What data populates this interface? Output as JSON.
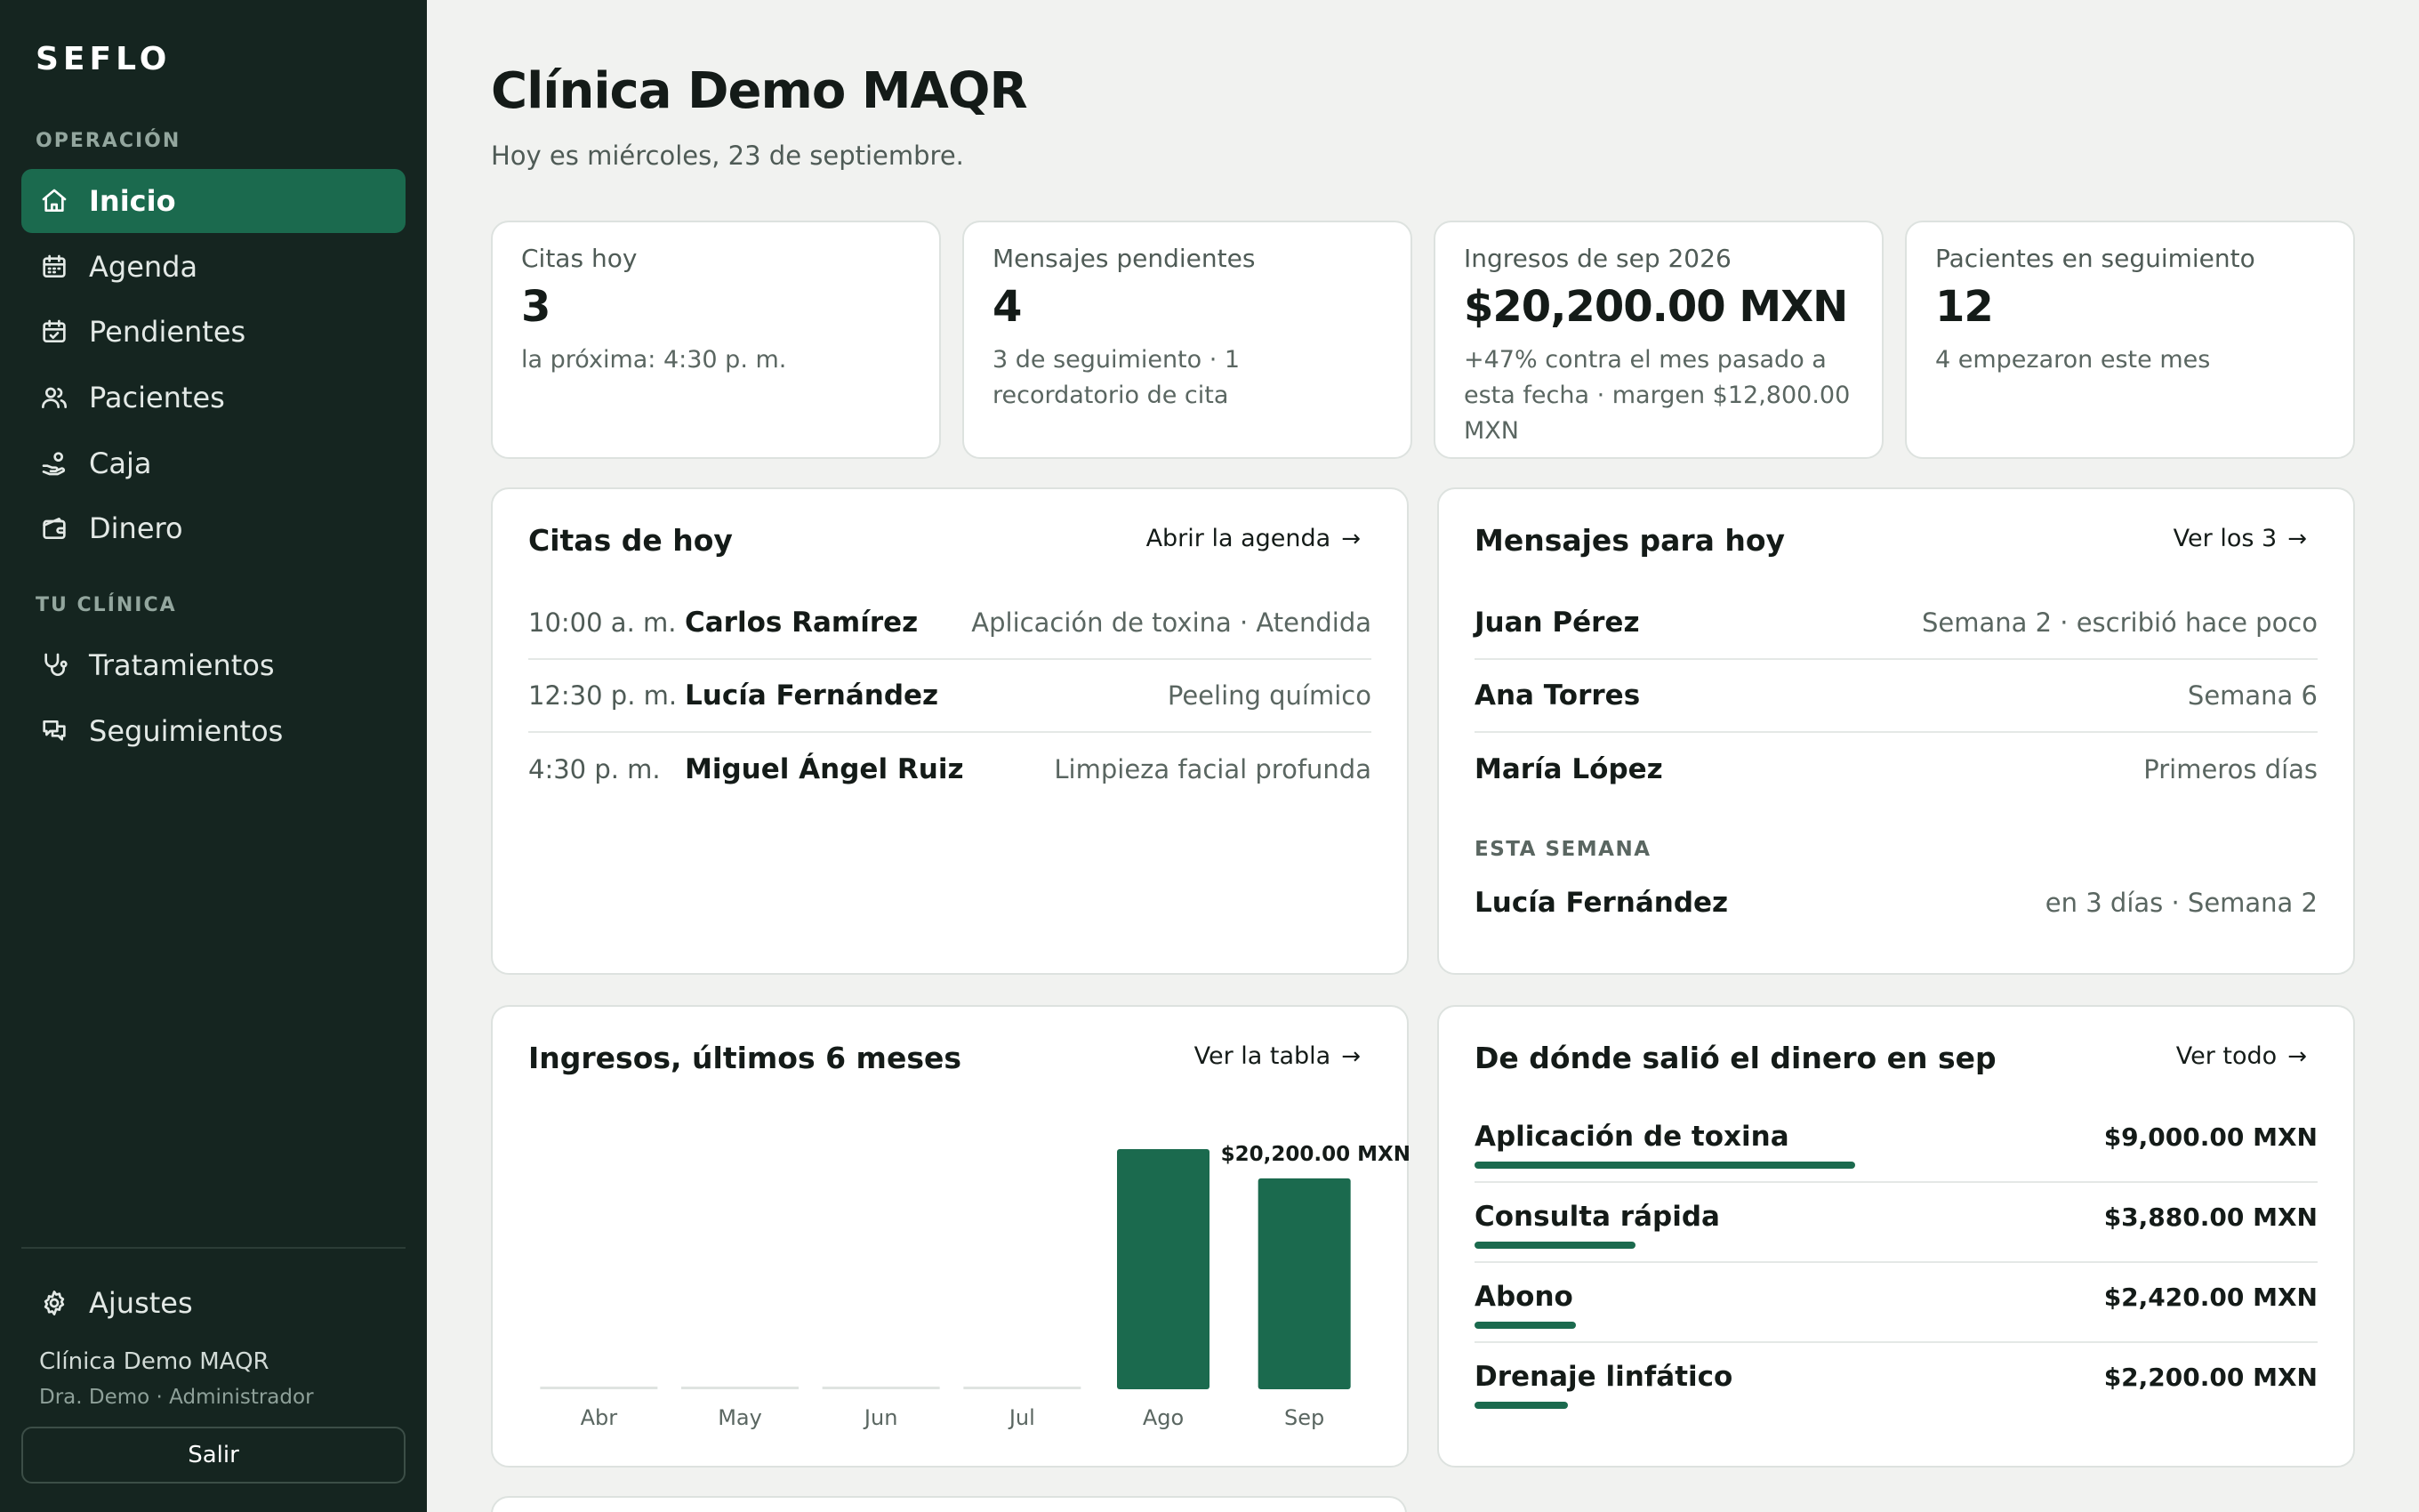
{
  "brand": "SEFLO",
  "sidebar": {
    "section_operacion": "OPERACIÓN",
    "section_clinica": "TU CLÍNICA",
    "items": [
      {
        "label": "Inicio",
        "icon": "home-icon",
        "active": true
      },
      {
        "label": "Agenda",
        "icon": "calendar-icon"
      },
      {
        "label": "Pendientes",
        "icon": "calendar-check-icon"
      },
      {
        "label": "Pacientes",
        "icon": "users-icon"
      },
      {
        "label": "Caja",
        "icon": "hand-coins-icon"
      },
      {
        "label": "Dinero",
        "icon": "wallet-icon"
      },
      {
        "label": "Tratamientos",
        "icon": "stethoscope-icon"
      },
      {
        "label": "Seguimientos",
        "icon": "messages-icon"
      }
    ],
    "settings_label": "Ajustes",
    "clinic_name": "Clínica Demo MAQR",
    "clinic_user": "Dra. Demo · Administrador",
    "logout_label": "Salir"
  },
  "header": {
    "title": "Clínica Demo MAQR",
    "subtitle": "Hoy es miércoles, 23 de septiembre."
  },
  "stats": [
    {
      "label": "Citas hoy",
      "value": "3",
      "note": "la próxima: 4:30 p. m."
    },
    {
      "label": "Mensajes pendientes",
      "value": "4",
      "note": "3 de seguimiento · 1 recordatorio de cita"
    },
    {
      "label": "Ingresos de sep 2026",
      "value": "$20,200.00 MXN",
      "note": "+47% contra el mes pasado a esta fecha · margen $12,800.00 MXN"
    },
    {
      "label": "Pacientes en seguimiento",
      "value": "12",
      "note": "4 empezaron este mes"
    }
  ],
  "appointments": {
    "title": "Citas de hoy",
    "link": "Abrir la agenda",
    "rows": [
      {
        "time": "10:00 a. m.",
        "name": "Carlos Ramírez",
        "detail": "Aplicación de toxina · Atendida"
      },
      {
        "time": "12:30 p. m.",
        "name": "Lucía Fernández",
        "detail": "Peeling químico"
      },
      {
        "time": "4:30 p. m.",
        "name": "Miguel Ángel Ruiz",
        "detail": "Limpieza facial profunda"
      }
    ]
  },
  "messages": {
    "title": "Mensajes para hoy",
    "link": "Ver los 3",
    "rows": [
      {
        "name": "Juan Pérez",
        "detail": "Semana 2 · escribió hace poco"
      },
      {
        "name": "Ana Torres",
        "detail": "Semana 6"
      },
      {
        "name": "María López",
        "detail": "Primeros días"
      }
    ],
    "week_label": "ESTA SEMANA",
    "week_rows": [
      {
        "name": "Lucía Fernández",
        "detail": "en 3 días · Semana 2"
      }
    ]
  },
  "income_chart": {
    "title": "Ingresos, últimos 6 meses",
    "link": "Ver la tabla"
  },
  "chart_data": {
    "type": "bar",
    "categories": [
      "Abr",
      "May",
      "Jun",
      "Jul",
      "Ago",
      "Sep"
    ],
    "values": [
      0,
      0,
      0,
      0,
      23000,
      20200
    ],
    "highlight_label": "$20,200.00 MXN",
    "highlight_index": 5,
    "ylim": [
      0,
      23000
    ],
    "grid": false,
    "bar_color": "#1b6a4e"
  },
  "income_sources": {
    "title": "De dónde salió el dinero en sep",
    "link": "Ver todo",
    "rows": [
      {
        "name": "Aplicación de toxina",
        "amount": "$9,000.00 MXN",
        "share": 0.45
      },
      {
        "name": "Consulta rápida",
        "amount": "$3,880.00 MXN",
        "share": 0.19
      },
      {
        "name": "Abono",
        "amount": "$2,420.00 MXN",
        "share": 0.12
      },
      {
        "name": "Drenaje linfático",
        "amount": "$2,200.00 MXN",
        "share": 0.11
      }
    ]
  },
  "colors": {
    "sidebar_bg": "#152520",
    "accent": "#1b6a4e",
    "page_bg": "#f1f2f0"
  }
}
